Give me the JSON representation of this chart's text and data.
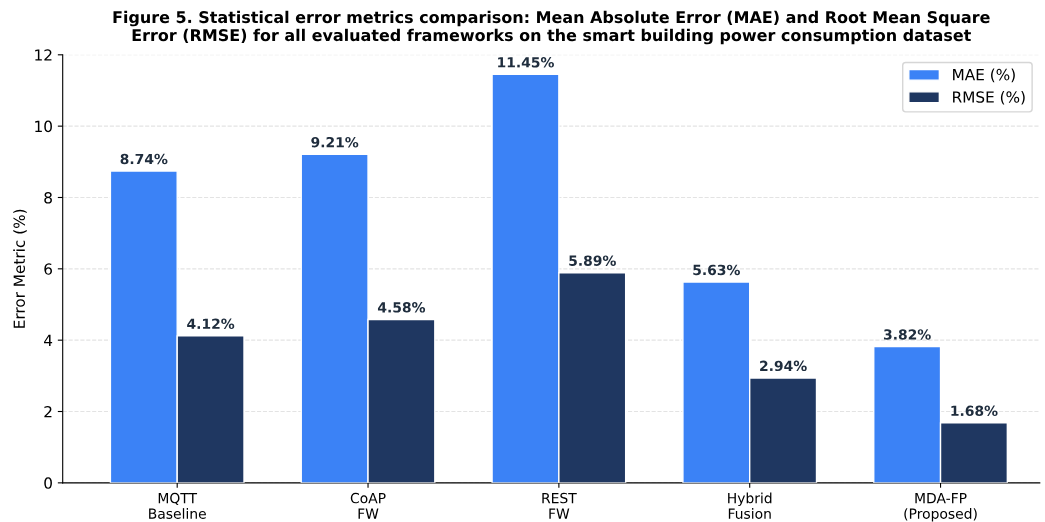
{
  "chart_data": {
    "type": "bar",
    "title": "Figure 5. Statistical error metrics comparison: Mean Absolute Error (MAE) and Root Mean Square\nError (RMSE) for all evaluated frameworks on the smart building power consumption dataset",
    "ylabel": "Error Metric (%)",
    "categories": [
      "MQTT\nBaseline",
      "CoAP\nFW",
      "REST\nFW",
      "Hybrid\nFusion",
      "MDA-FP\n(Proposed)"
    ],
    "series": [
      {
        "name": "MAE (%)",
        "color": "#3b82f6",
        "values": [
          8.74,
          9.21,
          11.45,
          5.63,
          3.82
        ],
        "value_labels": [
          "8.74%",
          "9.21%",
          "11.45%",
          "5.63%",
          "3.82%"
        ]
      },
      {
        "name": "RMSE (%)",
        "color": "#1f3761",
        "values": [
          4.12,
          4.58,
          5.89,
          2.94,
          1.68
        ],
        "value_labels": [
          "4.12%",
          "4.58%",
          "5.89%",
          "2.94%",
          "1.68%"
        ]
      }
    ],
    "ylim": [
      0,
      12
    ],
    "yticks": [
      0,
      2,
      4,
      6,
      8,
      10,
      12
    ],
    "grid": "y",
    "legend": "top right"
  }
}
